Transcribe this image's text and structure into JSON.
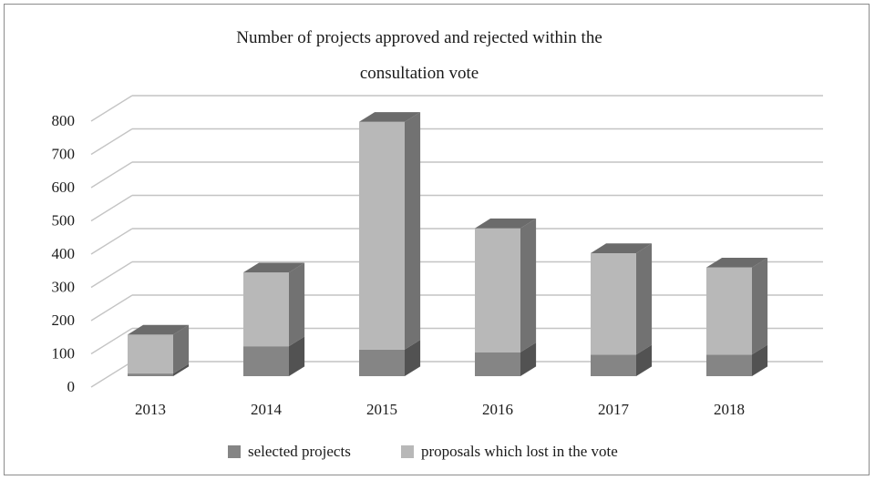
{
  "chart_data": {
    "type": "bar",
    "stacked": true,
    "three_d": true,
    "title_lines": [
      "Number of projects approved and rejected within the",
      "consultation vote"
    ],
    "categories": [
      "2013",
      "2014",
      "2015",
      "2016",
      "2017",
      "2018"
    ],
    "series": [
      {
        "name": "selected projects",
        "color": "#858585",
        "values": [
          8,
          90,
          80,
          72,
          65,
          65
        ]
      },
      {
        "name": "proposals which lost in the vote",
        "color": "#b8b8b8",
        "values": [
          117,
          222,
          685,
          373,
          305,
          262
        ]
      }
    ],
    "ylim": [
      0,
      800
    ],
    "yticks": [
      "0",
      "100",
      "200",
      "300",
      "400",
      "500",
      "600",
      "700",
      "800"
    ],
    "grid": true,
    "legend_position": "bottom"
  }
}
